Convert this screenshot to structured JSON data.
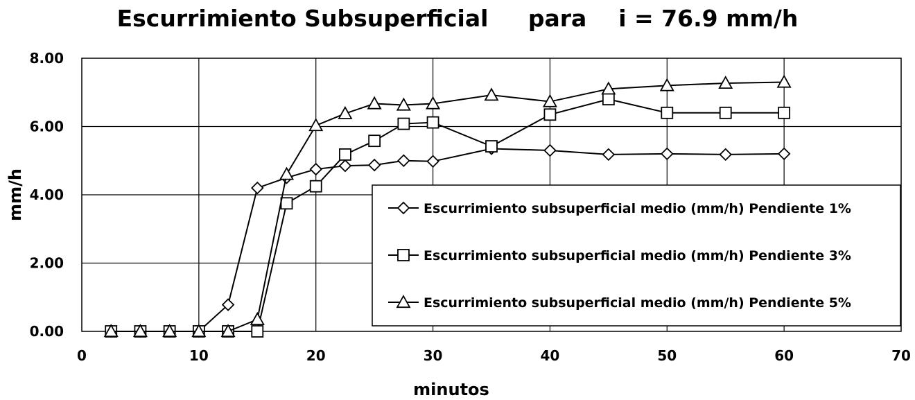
{
  "chart_data": {
    "type": "line",
    "title": "Escurrimiento Subsuperficial     para    i = 76.9 mm/h",
    "xlabel": "minutos",
    "ylabel": "mm/h",
    "xlim": [
      0,
      70
    ],
    "ylim": [
      0,
      8
    ],
    "x_ticks": [
      "0",
      "10",
      "20",
      "30",
      "40",
      "50",
      "60",
      "70"
    ],
    "y_ticks": [
      "0.00",
      "2.00",
      "4.00",
      "6.00",
      "8.00"
    ],
    "grid": true,
    "legend_position": "lower-right",
    "series": [
      {
        "name": "Escurrimiento subsuperficial medio (mm/h) Pendiente 1%",
        "marker": "diamond",
        "x": [
          2.5,
          5,
          7.5,
          10,
          12.5,
          15,
          17.5,
          20,
          22.5,
          25,
          27.5,
          30,
          35,
          40,
          45,
          50,
          55,
          60
        ],
        "y": [
          0,
          0,
          0,
          0,
          0.78,
          4.2,
          4.5,
          4.75,
          4.85,
          4.87,
          5.0,
          4.98,
          5.35,
          5.3,
          5.18,
          5.2,
          5.18,
          5.2
        ]
      },
      {
        "name": "Escurrimiento subsuperficial medio (mm/h) Pendiente 3%",
        "marker": "square",
        "x": [
          2.5,
          5,
          7.5,
          10,
          12.5,
          15,
          17.5,
          20,
          22.5,
          25,
          27.5,
          30,
          35,
          40,
          45,
          50,
          55,
          60
        ],
        "y": [
          0,
          0,
          0,
          0,
          0,
          0,
          3.75,
          4.25,
          5.18,
          5.58,
          6.08,
          6.12,
          5.42,
          6.35,
          6.8,
          6.4,
          6.4,
          6.4
        ]
      },
      {
        "name": "Escurrimiento subsuperficial medio (mm/h) Pendiente 5%",
        "marker": "triangle",
        "x": [
          2.5,
          5,
          7.5,
          10,
          12.5,
          15,
          17.5,
          20,
          22.5,
          25,
          27.5,
          30,
          35,
          40,
          45,
          50,
          55,
          60
        ],
        "y": [
          0,
          0,
          0,
          0,
          0,
          0.35,
          4.6,
          6.03,
          6.38,
          6.67,
          6.63,
          6.67,
          6.92,
          6.73,
          7.1,
          7.2,
          7.27,
          7.3
        ]
      }
    ]
  }
}
